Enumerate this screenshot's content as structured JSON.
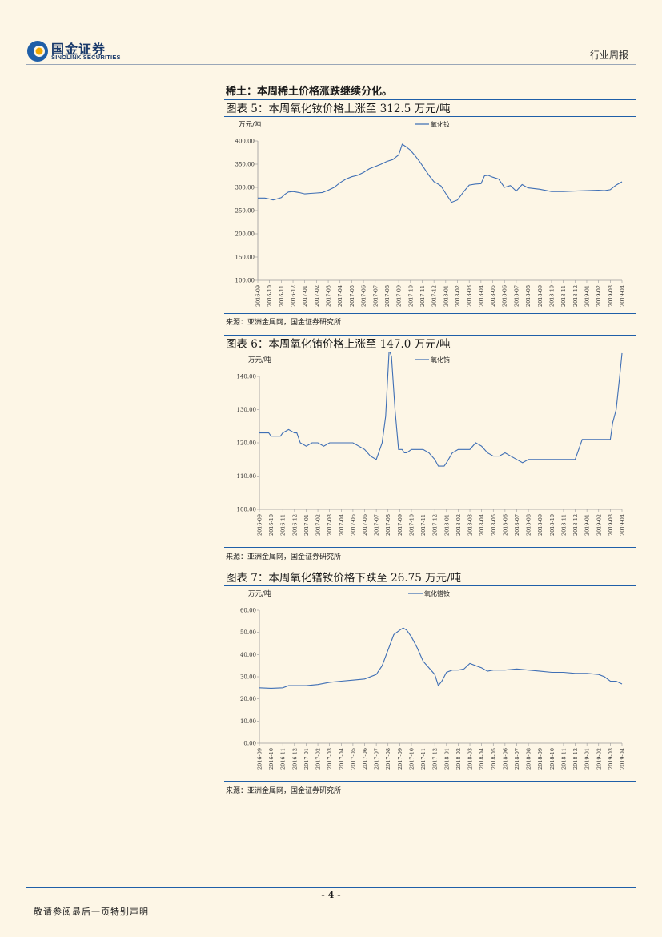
{
  "header": {
    "brand_cn": "国金证券",
    "brand_en": "SINOLINK SECURITIES",
    "report_type": "行业周报",
    "logo_colors": [
      "#1f5fa8",
      "#f2a900"
    ]
  },
  "section_heading": "稀土：本周稀土价格涨跌继续分化。",
  "figures": [
    {
      "title": "图表 5：本周氧化钕价格上涨至 312.5 万元/吨",
      "source": "来源：亚洲金属网，国金证券研究所"
    },
    {
      "title": "图表 6：本周氧化铕价格上涨至 147.0 万元/吨",
      "source": "来源：亚洲金属网，国金证券研究所"
    },
    {
      "title": "图表 7：本周氧化镨钕价格下跌至 26.75 万元/吨",
      "source": "来源：亚洲金属网，国金证券研究所"
    }
  ],
  "chart_data": [
    {
      "type": "line",
      "ylabel": "万元/吨",
      "ylim": [
        100,
        400
      ],
      "yticks": [
        "400.00",
        "350.00",
        "300.00",
        "250.00",
        "200.00",
        "150.00",
        "100.00"
      ],
      "xticks": [
        "2016-09",
        "2016-10",
        "2016-11",
        "2016-12",
        "2017-01",
        "2017-02",
        "2017-03",
        "2017-04",
        "2017-05",
        "2017-06",
        "2017-07",
        "2017-08",
        "2017-09",
        "2017-10",
        "2017-11",
        "2017-12",
        "2018-01",
        "2018-02",
        "2018-03",
        "2018-04",
        "2018-05",
        "2018-06",
        "2018-07",
        "2018-08",
        "2018-09",
        "2018-10",
        "2018-11",
        "2018-12",
        "2019-01",
        "2019-02",
        "2019-03",
        "2019-04"
      ],
      "series": [
        {
          "name": "氧化钕",
          "color": "#3f6fb5",
          "x": [
            0,
            0.6,
            1,
            1.3,
            1.6,
            2,
            2.3,
            2.6,
            3,
            3.5,
            4,
            4.5,
            5,
            5.5,
            6,
            6.5,
            7,
            7.5,
            8,
            8.5,
            9,
            9.5,
            10,
            10.5,
            11,
            11.5,
            11.8,
            12,
            12.3,
            12.6,
            13,
            13.4,
            13.8,
            14.2,
            14.6,
            15,
            15.3,
            15.6,
            16,
            16.5,
            17,
            17.5,
            18,
            18.5,
            19,
            19.3,
            19.6,
            20,
            20.5,
            21,
            21.5,
            22,
            22.5,
            23,
            24,
            25,
            26,
            27,
            28,
            29,
            29.5,
            30,
            30.5,
            31
          ],
          "values": [
            277,
            277,
            275,
            273,
            275,
            278,
            285,
            290,
            291,
            289,
            286,
            287,
            288,
            289,
            294,
            300,
            310,
            318,
            323,
            326,
            332,
            340,
            345,
            350,
            356,
            360,
            366,
            370,
            393,
            388,
            380,
            368,
            355,
            340,
            325,
            312,
            308,
            303,
            287,
            268,
            273,
            290,
            305,
            307,
            308,
            325,
            326,
            322,
            318,
            300,
            304,
            292,
            306,
            299,
            296,
            291,
            291,
            292,
            293,
            294,
            293,
            295,
            305,
            312
          ]
        }
      ]
    },
    {
      "type": "line",
      "ylabel": "万元/吨",
      "ylim": [
        100,
        140
      ],
      "yticks": [
        "140.00",
        "130.00",
        "120.00",
        "110.00",
        "100.00"
      ],
      "xticks": [
        "2016-09",
        "2016-10",
        "2016-11",
        "2016-12",
        "2017-01",
        "2017-02",
        "2017-03",
        "2017-04",
        "2017-05",
        "2017-06",
        "2017-07",
        "2017-08",
        "2017-09",
        "2017-10",
        "2017-11",
        "2017-12",
        "2018-01",
        "2018-02",
        "2018-03",
        "2018-04",
        "2018-05",
        "2018-06",
        "2018-07",
        "2018-08",
        "2018-09",
        "2018-10",
        "2018-11",
        "2018-12",
        "2019-01",
        "2019-02",
        "2019-03",
        "2019-04"
      ],
      "series": [
        {
          "name": "氧化铕",
          "color": "#3f6fb5",
          "x": [
            0,
            0.8,
            1,
            1.8,
            2,
            2.5,
            3,
            3.2,
            3.5,
            4,
            4.5,
            5,
            5.5,
            6,
            7,
            8,
            9,
            9.5,
            10,
            10.5,
            10.8,
            11.1,
            11.3,
            11.6,
            11.9,
            12.2,
            12.4,
            12.6,
            13,
            14,
            14.5,
            15,
            15.3,
            15.8,
            16,
            16.5,
            17,
            17.5,
            18,
            18.5,
            19,
            19.5,
            20,
            20.5,
            21,
            22,
            22.5,
            23,
            24,
            25,
            26,
            27,
            27.3,
            27.6,
            28,
            29,
            29.5,
            30,
            30.2,
            30.5,
            30.8,
            31
          ],
          "values": [
            123,
            123,
            122,
            122,
            123,
            124,
            123,
            123,
            120,
            119,
            120,
            120,
            119,
            120,
            120,
            120,
            118,
            116,
            115,
            120,
            128,
            148,
            146,
            130,
            118,
            118,
            117,
            117,
            118,
            118,
            117,
            115,
            113,
            113,
            114,
            117,
            118,
            118,
            118,
            120,
            119,
            117,
            116,
            116,
            117,
            115,
            114,
            115,
            115,
            115,
            115,
            115,
            118,
            121,
            121,
            121,
            121,
            121,
            126,
            130,
            140,
            147
          ]
        }
      ]
    },
    {
      "type": "line",
      "ylabel": "万元/吨",
      "ylim": [
        0,
        60
      ],
      "yticks": [
        "60.00",
        "50.00",
        "40.00",
        "30.00",
        "20.00",
        "10.00",
        "0.00"
      ],
      "xticks": [
        "2016-09",
        "2016-10",
        "2016-11",
        "2016-12",
        "2017-01",
        "2017-02",
        "2017-03",
        "2017-04",
        "2017-05",
        "2017-06",
        "2017-07",
        "2017-08",
        "2017-09",
        "2017-10",
        "2017-11",
        "2017-12",
        "2018-01",
        "2018-02",
        "2018-03",
        "2018-04",
        "2018-05",
        "2018-06",
        "2018-07",
        "2018-08",
        "2018-09",
        "2018-10",
        "2018-11",
        "2018-12",
        "2019-01",
        "2019-02",
        "2019-03",
        "2019-04"
      ],
      "series": [
        {
          "name": "氧化镨钕",
          "color": "#3f6fb5",
          "x": [
            0,
            1,
            2,
            2.5,
            3,
            4,
            5,
            6,
            7,
            8,
            9,
            10,
            10.5,
            11,
            11.5,
            12,
            12.3,
            12.6,
            13,
            13.5,
            14,
            14.5,
            15,
            15.3,
            15.6,
            16,
            16.5,
            17,
            17.5,
            18,
            18.5,
            19,
            19.5,
            20,
            21,
            22,
            23,
            24,
            25,
            26,
            27,
            28,
            29,
            29.5,
            30,
            30.5,
            31
          ],
          "values": [
            25,
            24.8,
            25,
            26,
            26,
            26,
            26.5,
            27.5,
            28,
            28.5,
            29,
            31,
            35,
            42,
            49,
            51,
            52,
            51,
            48,
            43,
            37,
            34,
            31,
            26,
            28,
            32,
            33,
            33,
            33.5,
            36,
            35,
            34,
            32.5,
            33,
            33,
            33.5,
            33,
            32.5,
            32,
            32,
            31.5,
            31.5,
            31,
            30,
            28,
            28,
            26.75
          ]
        }
      ]
    }
  ]
}
